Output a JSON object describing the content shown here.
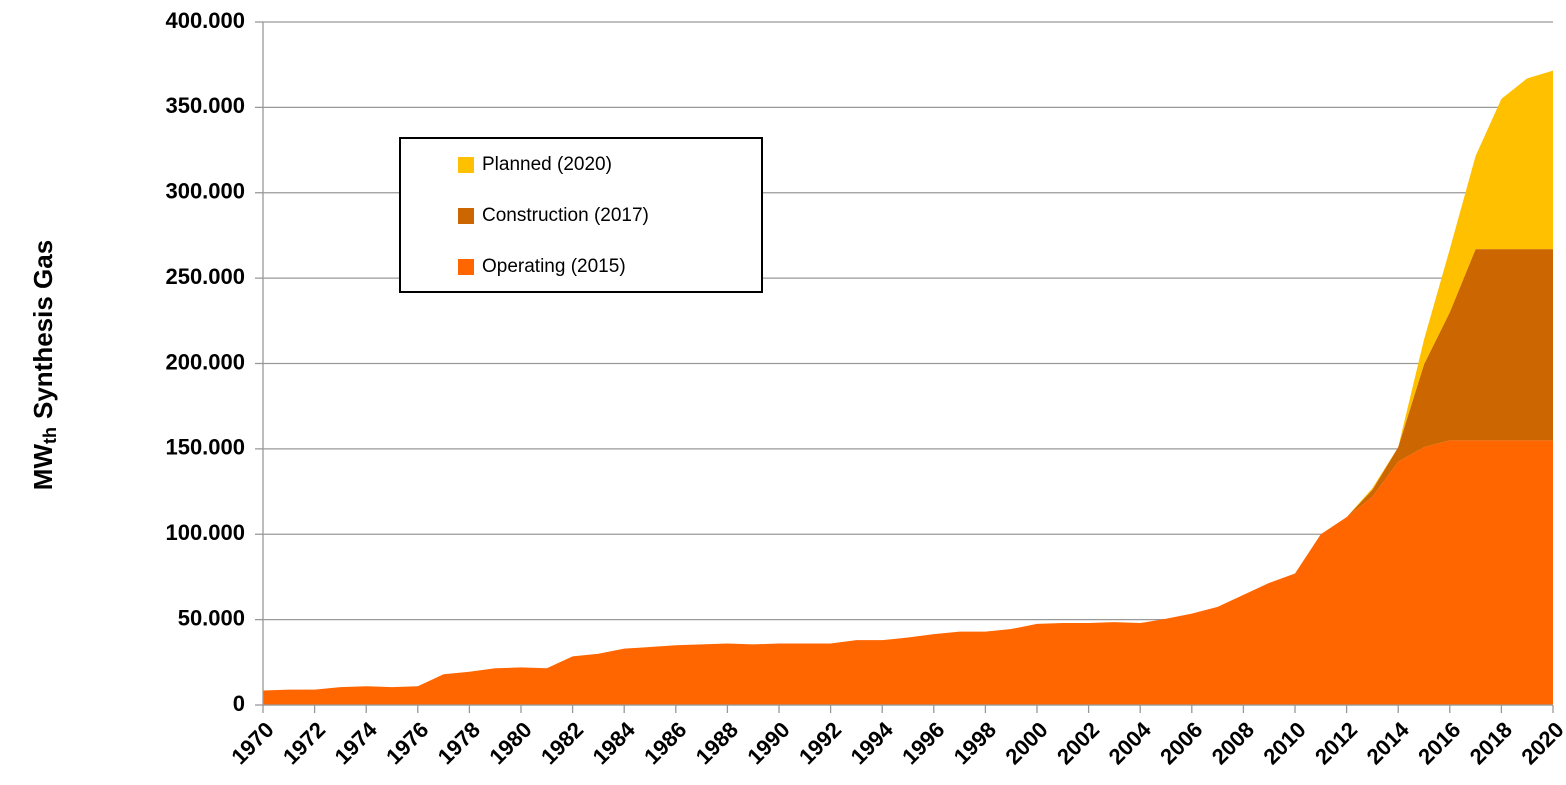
{
  "chart_data": {
    "type": "stacked_area",
    "y_label": {
      "main": "MW",
      "sub": "th",
      "rest": "Synthesis Gas"
    },
    "x": [
      1970,
      1971,
      1972,
      1973,
      1974,
      1975,
      1976,
      1977,
      1978,
      1979,
      1980,
      1981,
      1982,
      1983,
      1984,
      1985,
      1986,
      1987,
      1988,
      1989,
      1990,
      1991,
      1992,
      1993,
      1994,
      1995,
      1996,
      1997,
      1998,
      1999,
      2000,
      2001,
      2002,
      2003,
      2004,
      2005,
      2006,
      2007,
      2008,
      2009,
      2010,
      2011,
      2012,
      2013,
      2014,
      2015,
      2016,
      2017,
      2018,
      2019,
      2020
    ],
    "series": [
      {
        "name": "Operating (2015)",
        "color": "#ff6600",
        "values": [
          8500,
          9000,
          9000,
          10500,
          11000,
          10500,
          11000,
          18000,
          19500,
          21500,
          22000,
          21500,
          28500,
          30000,
          33000,
          34000,
          35000,
          35500,
          36000,
          35500,
          36000,
          36000,
          36000,
          38000,
          38000,
          39500,
          41500,
          43000,
          43000,
          44500,
          47500,
          48000,
          48000,
          48500,
          48000,
          50500,
          53500,
          57500,
          64500,
          71500,
          77000,
          100000,
          110000,
          122000,
          142500,
          151000,
          155000,
          155000,
          155000,
          155000,
          155000
        ]
      },
      {
        "name": "Construction (2017)",
        "color": "#cc6600",
        "values": [
          0,
          0,
          0,
          0,
          0,
          0,
          0,
          0,
          0,
          0,
          0,
          0,
          0,
          0,
          0,
          0,
          0,
          0,
          0,
          0,
          0,
          0,
          0,
          0,
          0,
          0,
          0,
          0,
          0,
          0,
          0,
          0,
          0,
          0,
          0,
          0,
          0,
          0,
          0,
          0,
          0,
          0,
          0,
          4000,
          8500,
          48500,
          75000,
          112000,
          112000,
          112000,
          112000
        ]
      },
      {
        "name": "Planned (2020)",
        "color": "#ffc000",
        "values": [
          0,
          0,
          0,
          0,
          0,
          0,
          0,
          0,
          0,
          0,
          0,
          0,
          0,
          0,
          0,
          0,
          0,
          0,
          0,
          0,
          0,
          0,
          0,
          0,
          0,
          0,
          0,
          0,
          0,
          0,
          0,
          0,
          0,
          0,
          0,
          0,
          0,
          0,
          0,
          0,
          0,
          0,
          0,
          1000,
          0,
          14500,
          37000,
          54500,
          88000,
          100000,
          104500
        ]
      }
    ],
    "xlim": [
      1970,
      2020
    ],
    "xticks": [
      1970,
      1972,
      1974,
      1976,
      1978,
      1980,
      1982,
      1984,
      1986,
      1988,
      1990,
      1992,
      1994,
      1996,
      1998,
      2000,
      2002,
      2004,
      2006,
      2008,
      2010,
      2012,
      2014,
      2016,
      2018,
      2020
    ],
    "ylim": [
      0,
      400000
    ],
    "yticks": [
      0,
      {
        "value": 50000,
        "label": "50.000"
      },
      {
        "value": 100000,
        "label": "100.000"
      },
      {
        "value": 150000,
        "label": "150.000"
      },
      {
        "value": 200000,
        "label": "200.000"
      },
      {
        "value": 250000,
        "label": "250.000"
      },
      {
        "value": 300000,
        "label": "300.000"
      },
      {
        "value": 350000,
        "label": "350.000"
      },
      {
        "value": 400000,
        "label": "400.000"
      }
    ],
    "grid": true,
    "legend": "upper left"
  }
}
